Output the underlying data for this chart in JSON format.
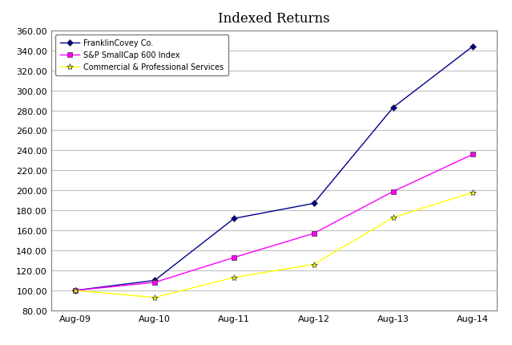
{
  "title": "Indexed Returns",
  "x_labels": [
    "Aug-09",
    "Aug-10",
    "Aug-11",
    "Aug-12",
    "Aug-13",
    "Aug-14"
  ],
  "series": [
    {
      "label": "FranklinCovey Co.",
      "color": "#00008B",
      "marker": "D",
      "markersize": 4,
      "values": [
        100.0,
        110.0,
        172.0,
        187.0,
        283.0,
        344.0
      ]
    },
    {
      "label": "S&P SmallCap 600 Index",
      "color": "#FF00FF",
      "marker": "s",
      "markersize": 4,
      "values": [
        100.0,
        108.0,
        133.0,
        157.0,
        199.0,
        236.0
      ]
    },
    {
      "label": "Commercial & Professional Services",
      "color": "#FFFF00",
      "marker": "*",
      "markersize": 6,
      "values": [
        100.0,
        93.0,
        113.0,
        126.0,
        173.0,
        198.0
      ]
    }
  ],
  "ylim": [
    80.0,
    360.0
  ],
  "yticks": [
    80.0,
    100.0,
    120.0,
    140.0,
    160.0,
    180.0,
    200.0,
    220.0,
    240.0,
    260.0,
    280.0,
    300.0,
    320.0,
    340.0,
    360.0
  ],
  "background_color": "#FFFFFF",
  "plot_bg_color": "#FFFFFF",
  "grid_color": "#C0C0C0",
  "title_fontsize": 12,
  "legend_fontsize": 7,
  "tick_fontsize": 8
}
